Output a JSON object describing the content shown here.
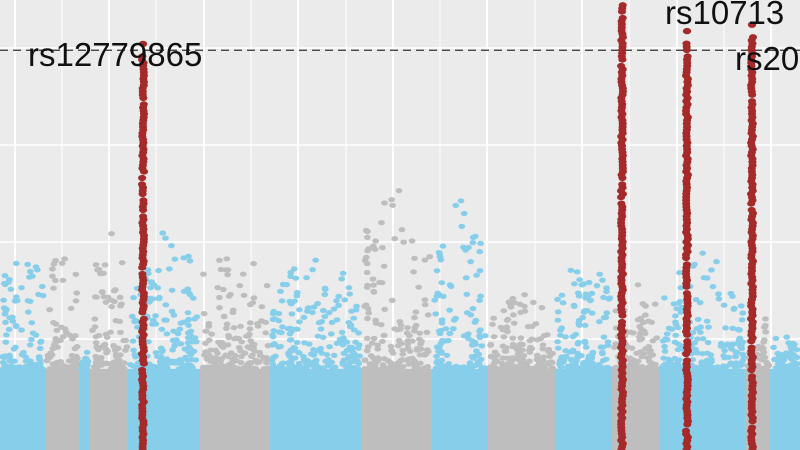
{
  "chart_data": {
    "type": "scatter",
    "title": "",
    "xlabel": "",
    "ylabel": "",
    "grid": true,
    "legend": "none",
    "significance_line": {
      "y": 8.0,
      "style": "dashed"
    },
    "ylim": [
      0,
      8.6
    ],
    "colors": {
      "background": "#ebebeb",
      "grid": "#ffffff",
      "blue": "#87ceeb",
      "gray": "#bebebe",
      "highlight": "#a52a2a",
      "threshold": "#333333"
    },
    "blocks": [
      {
        "color": "blue",
        "x_start": 0,
        "x_end": 46,
        "peak": 4.9
      },
      {
        "color": "gray",
        "x_start": 46,
        "x_end": 80,
        "peak": 5.0
      },
      {
        "color": "blue",
        "x_start": 80,
        "x_end": 90,
        "peak": 3.4
      },
      {
        "color": "gray",
        "x_start": 90,
        "x_end": 128,
        "peak": 5.3
      },
      {
        "color": "blue",
        "x_start": 128,
        "x_end": 200,
        "peak": 5.2
      },
      {
        "color": "gray",
        "x_start": 200,
        "x_end": 270,
        "peak": 5.0
      },
      {
        "color": "blue",
        "x_start": 270,
        "x_end": 362,
        "peak": 4.8
      },
      {
        "color": "gray",
        "x_start": 362,
        "x_end": 432,
        "peak": 5.9
      },
      {
        "color": "blue",
        "x_start": 432,
        "x_end": 488,
        "peak": 5.7
      },
      {
        "color": "gray",
        "x_start": 488,
        "x_end": 555,
        "peak": 4.2
      },
      {
        "color": "blue",
        "x_start": 555,
        "x_end": 612,
        "peak": 4.8
      },
      {
        "color": "gray",
        "x_start": 612,
        "x_end": 660,
        "peak": 4.4
      },
      {
        "color": "blue",
        "x_start": 660,
        "x_end": 745,
        "peak": 4.9
      },
      {
        "color": "gray",
        "x_start": 745,
        "x_end": 770,
        "peak": 4.0
      },
      {
        "color": "blue",
        "x_start": 770,
        "x_end": 800,
        "peak": 3.6
      }
    ],
    "highlighted_loci": [
      {
        "label": "rs12779865",
        "x": 143,
        "peak": 8.1
      },
      {
        "label": "",
        "x": 622,
        "peak": 8.9
      },
      {
        "label": "rs10713",
        "x": 687,
        "peak": 8.3
      },
      {
        "label": "rs20",
        "x": 752,
        "peak": 8.4
      }
    ]
  }
}
